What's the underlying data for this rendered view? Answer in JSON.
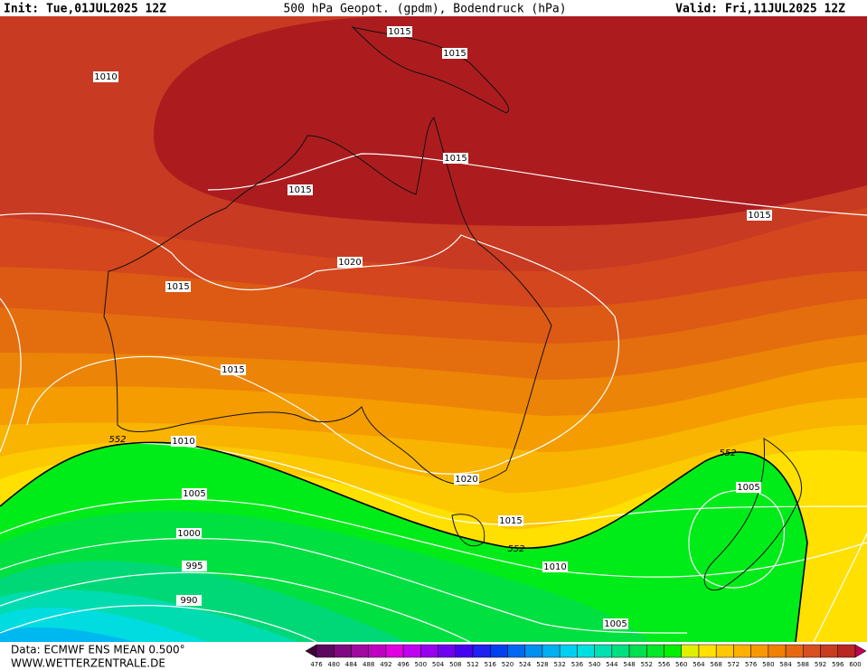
{
  "header": {
    "init": "Init: Tue,01JUL2025 12Z",
    "title": "500 hPa Geopot. (gpdm), Bodendruck (hPa)",
    "valid": "Valid: Fri,11JUL2025 12Z"
  },
  "isobar_labels": [
    "1015",
    "1015",
    "1010",
    "1015",
    "1015",
    "1015",
    "1020",
    "1015",
    "1015",
    "1010",
    "1020",
    "1005",
    "1015",
    "1005",
    "1000",
    "1010",
    "995",
    "990",
    "1005"
  ],
  "geopotential_labels": [
    "552",
    "552",
    "552"
  ],
  "footer": {
    "source": "Data: ECMWF ENS MEAN 0.500°",
    "site": "WWW.WETTERZENTRALE.DE"
  },
  "colorbar": {
    "labels": [
      "476",
      "480",
      "484",
      "488",
      "492",
      "496",
      "500",
      "504",
      "508",
      "512",
      "516",
      "520",
      "524",
      "528",
      "532",
      "536",
      "540",
      "544",
      "548",
      "552",
      "556",
      "560",
      "564",
      "568",
      "572",
      "576",
      "580",
      "584",
      "588",
      "592",
      "596",
      "600"
    ]
  }
}
